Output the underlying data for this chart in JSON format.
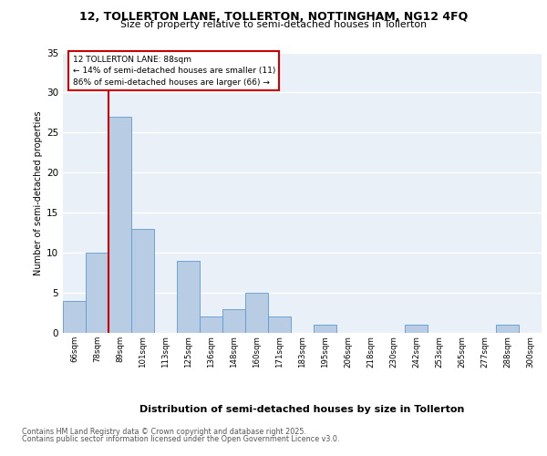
{
  "title1": "12, TOLLERTON LANE, TOLLERTON, NOTTINGHAM, NG12 4FQ",
  "title2": "Size of property relative to semi-detached houses in Tollerton",
  "xlabel": "Distribution of semi-detached houses by size in Tollerton",
  "ylabel": "Number of semi-detached properties",
  "categories": [
    "66sqm",
    "78sqm",
    "89sqm",
    "101sqm",
    "113sqm",
    "125sqm",
    "136sqm",
    "148sqm",
    "160sqm",
    "171sqm",
    "183sqm",
    "195sqm",
    "206sqm",
    "218sqm",
    "230sqm",
    "242sqm",
    "253sqm",
    "265sqm",
    "277sqm",
    "288sqm",
    "300sqm"
  ],
  "values": [
    4,
    10,
    27,
    13,
    0,
    9,
    2,
    3,
    5,
    2,
    0,
    1,
    0,
    0,
    0,
    1,
    0,
    0,
    0,
    1,
    0
  ],
  "bar_color": "#b8cce4",
  "bar_edge_color": "#5b9bd5",
  "highlight_line_color": "#cc0000",
  "annotation_title": "12 TOLLERTON LANE: 88sqm",
  "annotation_line1": "← 14% of semi-detached houses are smaller (11)",
  "annotation_line2": "86% of semi-detached houses are larger (66) →",
  "annotation_box_color": "#cc0000",
  "ylim": [
    0,
    35
  ],
  "yticks": [
    0,
    5,
    10,
    15,
    20,
    25,
    30,
    35
  ],
  "background_color": "#eaf0f8",
  "grid_color": "#ffffff",
  "footer1": "Contains HM Land Registry data © Crown copyright and database right 2025.",
  "footer2": "Contains public sector information licensed under the Open Government Licence v3.0."
}
